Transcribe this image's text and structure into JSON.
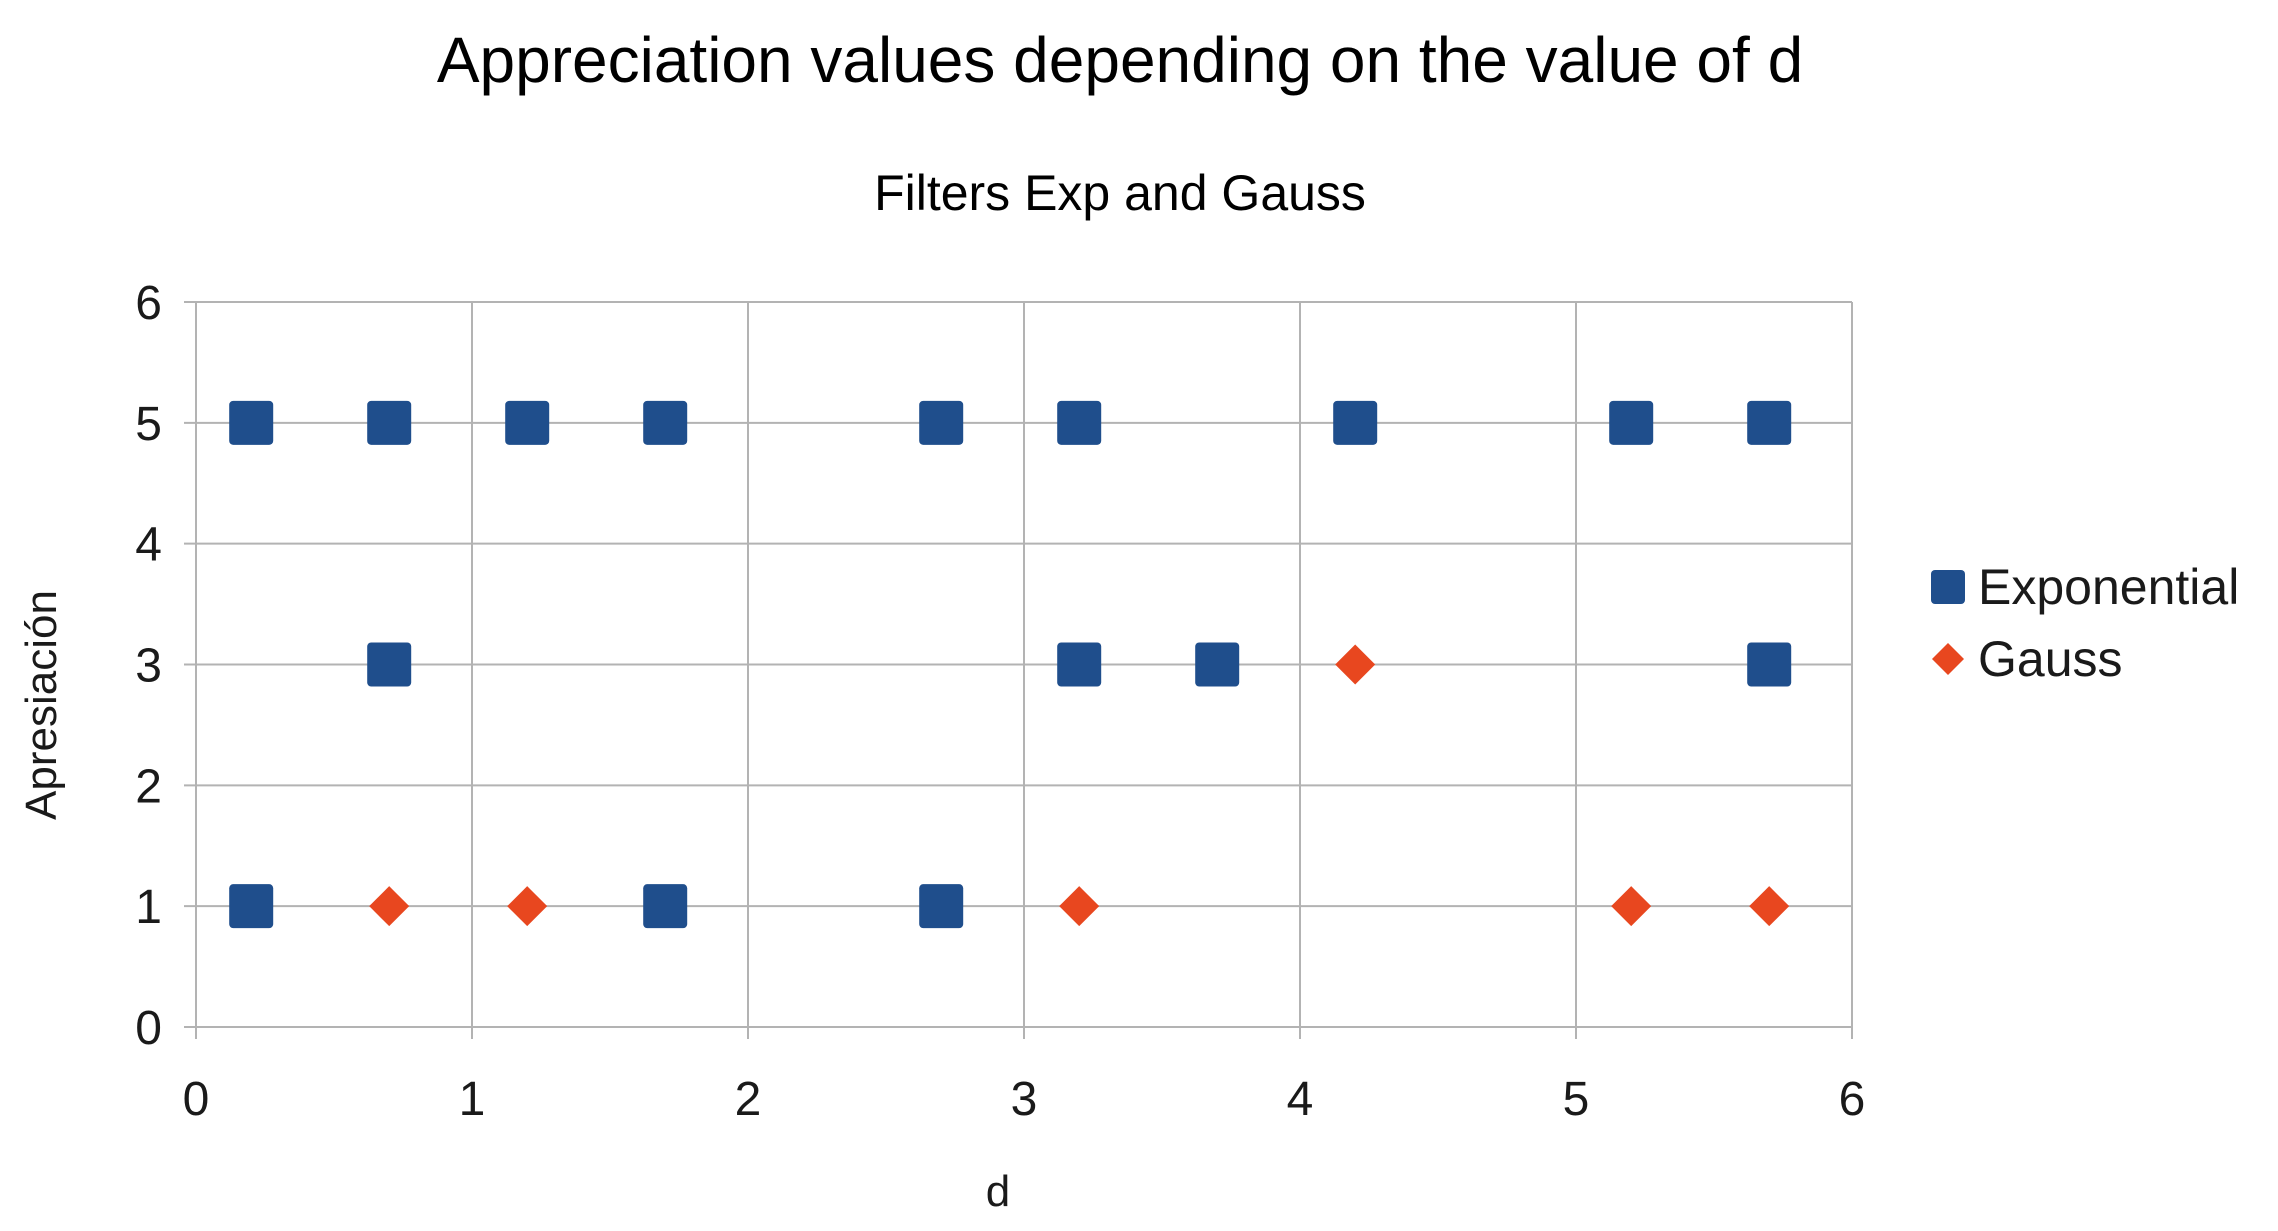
{
  "chart_data": {
    "type": "scatter",
    "title": "Appreciation values depending on the value of d",
    "subtitle": "Filters Exp and Gauss",
    "xlabel": "d",
    "ylabel": "Apresiación",
    "xlim": [
      0,
      6
    ],
    "ylim": [
      0,
      6
    ],
    "xticks": [
      "0",
      "1",
      "2",
      "3",
      "4",
      "5",
      "6"
    ],
    "yticks": [
      "0",
      "1",
      "2",
      "3",
      "4",
      "5",
      "6"
    ],
    "grid": true,
    "legend_position": "right",
    "series": [
      {
        "name": "Exponential",
        "marker": "square",
        "color": "#1f4e8c",
        "points": [
          [
            0.2,
            5
          ],
          [
            0.7,
            5
          ],
          [
            1.2,
            5
          ],
          [
            1.7,
            5
          ],
          [
            2.7,
            5
          ],
          [
            3.2,
            5
          ],
          [
            4.2,
            5
          ],
          [
            5.2,
            5
          ],
          [
            5.7,
            5
          ],
          [
            0.7,
            3
          ],
          [
            3.2,
            3
          ],
          [
            3.7,
            3
          ],
          [
            5.7,
            3
          ],
          [
            0.2,
            1
          ],
          [
            1.7,
            1
          ],
          [
            2.7,
            1
          ]
        ]
      },
      {
        "name": "Gauss",
        "marker": "diamond",
        "color": "#e8471f",
        "points": [
          [
            4.2,
            3
          ],
          [
            0.7,
            1
          ],
          [
            1.2,
            1
          ],
          [
            3.2,
            1
          ],
          [
            5.2,
            1
          ],
          [
            5.7,
            1
          ]
        ]
      }
    ]
  }
}
